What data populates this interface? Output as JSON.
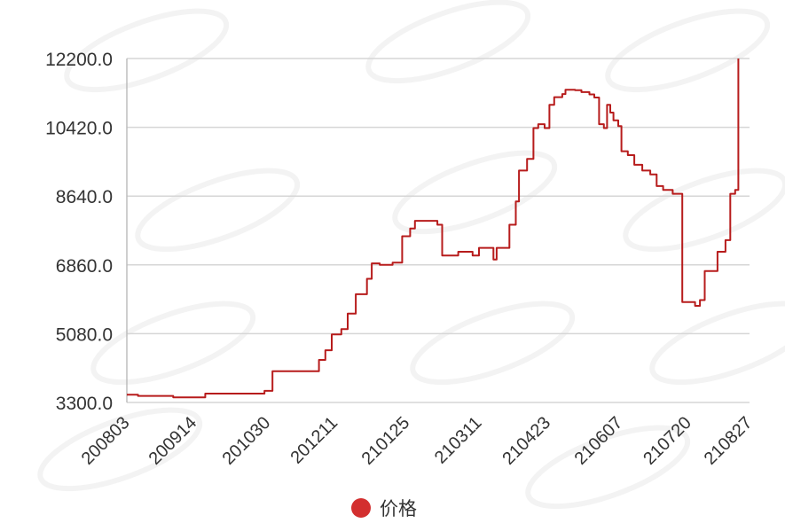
{
  "chart_data": {
    "type": "line",
    "title": "",
    "xlabel": "",
    "ylabel": "",
    "ylim": [
      3300,
      12200
    ],
    "y_ticks": [
      "3300.0",
      "5080.0",
      "6860.0",
      "8640.0",
      "10420.0",
      "12200.0"
    ],
    "x_ticks": [
      "200803",
      "200914",
      "201030",
      "201211",
      "210125",
      "210311",
      "210423",
      "210607",
      "210720",
      "210827"
    ],
    "grid": "horizontal",
    "legend": "bottom-center",
    "series": [
      {
        "name": "价格",
        "color": "#b71c1c",
        "points": [
          [
            "2020-08-03",
            3500
          ],
          [
            "2020-08-10",
            3470
          ],
          [
            "2020-08-24",
            3470
          ],
          [
            "2020-09-01",
            3430
          ],
          [
            "2020-09-18",
            3430
          ],
          [
            "2020-09-21",
            3530
          ],
          [
            "2020-10-26",
            3530
          ],
          [
            "2020-10-28",
            3600
          ],
          [
            "2020-11-02",
            4110
          ],
          [
            "2020-11-28",
            4110
          ],
          [
            "2020-12-01",
            4400
          ],
          [
            "2020-12-05",
            4650
          ],
          [
            "2020-12-09",
            5060
          ],
          [
            "2020-12-15",
            5200
          ],
          [
            "2020-12-19",
            5600
          ],
          [
            "2020-12-24",
            6100
          ],
          [
            "2020-12-31",
            6500
          ],
          [
            "2021-01-03",
            6900
          ],
          [
            "2021-01-08",
            6860
          ],
          [
            "2021-01-16",
            6920
          ],
          [
            "2021-01-22",
            7600
          ],
          [
            "2021-01-27",
            7800
          ],
          [
            "2021-01-30",
            8000
          ],
          [
            "2021-02-10",
            8000
          ],
          [
            "2021-02-13",
            7900
          ],
          [
            "2021-02-16",
            7100
          ],
          [
            "2021-02-26",
            7200
          ],
          [
            "2021-03-07",
            7100
          ],
          [
            "2021-03-11",
            7300
          ],
          [
            "2021-03-18",
            7300
          ],
          [
            "2021-03-20",
            7000
          ],
          [
            "2021-03-22",
            7300
          ],
          [
            "2021-03-28",
            7300
          ],
          [
            "2021-03-30",
            7900
          ],
          [
            "2021-04-03",
            8500
          ],
          [
            "2021-04-05",
            9300
          ],
          [
            "2021-04-10",
            9600
          ],
          [
            "2021-04-14",
            10400
          ],
          [
            "2021-04-17",
            10500
          ],
          [
            "2021-04-21",
            10400
          ],
          [
            "2021-04-24",
            11000
          ],
          [
            "2021-04-27",
            11200
          ],
          [
            "2021-05-02",
            11280
          ],
          [
            "2021-05-04",
            11390
          ],
          [
            "2021-05-10",
            11380
          ],
          [
            "2021-05-14",
            11330
          ],
          [
            "2021-05-19",
            11270
          ],
          [
            "2021-05-22",
            11190
          ],
          [
            "2021-05-25",
            10500
          ],
          [
            "2021-05-28",
            10400
          ],
          [
            "2021-05-30",
            11000
          ],
          [
            "2021-06-01",
            10800
          ],
          [
            "2021-06-03",
            10600
          ],
          [
            "2021-06-06",
            10450
          ],
          [
            "2021-06-08",
            9800
          ],
          [
            "2021-06-12",
            9700
          ],
          [
            "2021-06-16",
            9450
          ],
          [
            "2021-06-21",
            9300
          ],
          [
            "2021-06-26",
            9200
          ],
          [
            "2021-06-30",
            8900
          ],
          [
            "2021-07-04",
            8800
          ],
          [
            "2021-07-10",
            8700
          ],
          [
            "2021-07-15",
            8700
          ],
          [
            "2021-07-16",
            5900
          ],
          [
            "2021-07-21",
            5900
          ],
          [
            "2021-07-24",
            5800
          ],
          [
            "2021-07-27",
            5950
          ],
          [
            "2021-07-30",
            6700
          ],
          [
            "2021-08-04",
            6700
          ],
          [
            "2021-08-07",
            7200
          ],
          [
            "2021-08-12",
            7500
          ],
          [
            "2021-08-15",
            8700
          ],
          [
            "2021-08-18",
            8800
          ],
          [
            "2021-08-20",
            12200
          ]
        ]
      }
    ]
  }
}
